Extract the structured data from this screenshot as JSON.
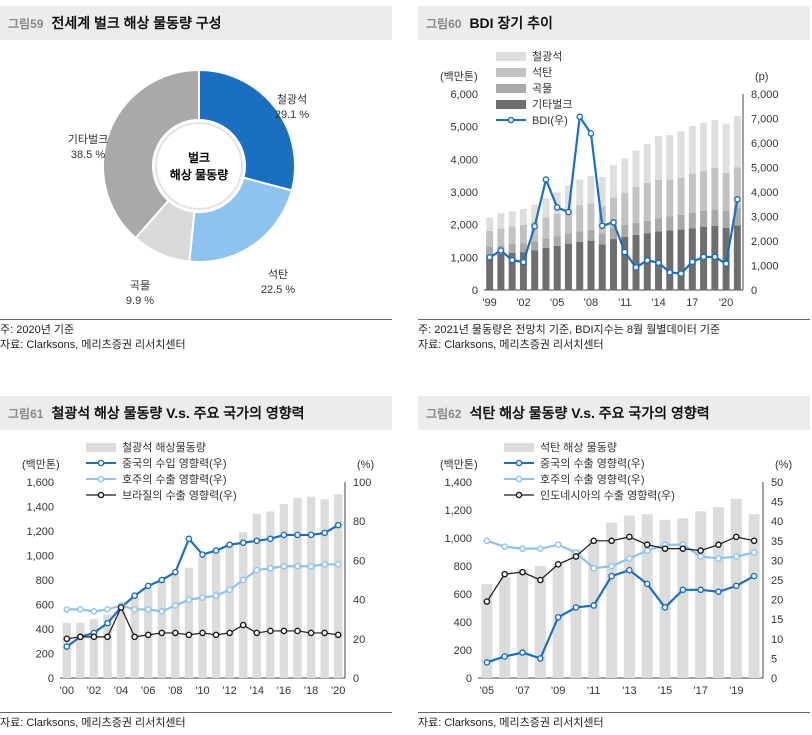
{
  "panels": {
    "p59": {
      "num": "그림59",
      "title": "전세계 벌크 해상 물동량 구성",
      "notes": [
        "주: 2020년 기준",
        "자료: Clarksons, 메리츠증권 리서치센터"
      ]
    },
    "p60": {
      "num": "그림60",
      "title": "BDI 장기 추이",
      "notes": [
        "주: 2021년 물동량은 전망치 기준, BDI지수는 8월 월별데이터 기준",
        "자료: Clarksons, 메리츠증권 리서치센터"
      ]
    },
    "p61": {
      "num": "그림61",
      "title": "철광석 해상 물동량 V.s. 주요 국가의 영향력",
      "notes": [
        "자료: Clarksons, 메리츠증권 리서치센터"
      ]
    },
    "p62": {
      "num": "그림62",
      "title": "석탄 해상 물동량 V.s. 주요 국가의 영향력",
      "notes": [
        "자료: Clarksons, 메리츠증권 리서치센터"
      ]
    }
  },
  "colors": {
    "blue": "#1a6fc1",
    "lightblue": "#8ec3ef",
    "darkgray": "#6e6e6e",
    "midgray": "#a9a9a9",
    "gray": "#d9d9d9",
    "barlight": "#e0e0e0"
  },
  "chart_data": [
    {
      "type": "pie",
      "center_label": [
        "벌크",
        "해상 물동량"
      ],
      "slices": [
        {
          "label": "철광석",
          "value": 29.1,
          "display": "29.1 %",
          "color": "#1a6fc1"
        },
        {
          "label": "석탄",
          "value": 22.5,
          "display": "22.5 %",
          "color": "#8ec3ef"
        },
        {
          "label": "곡물",
          "value": 9.9,
          "display": "9.9 %",
          "color": "#d9d9d9"
        },
        {
          "label": "기타벌크",
          "value": 38.5,
          "display": "38.5 %",
          "color": "#a9a9a9"
        }
      ]
    },
    {
      "type": "bar",
      "stacked": true,
      "y_unit_left": "(백만톤)",
      "y_unit_right": "(p)",
      "ylim_left": [
        0,
        6000
      ],
      "ylim_right": [
        0,
        8000
      ],
      "yticks_left": [
        "0",
        "1,000",
        "2,000",
        "3,000",
        "4,000",
        "5,000",
        "6,000"
      ],
      "yticks_right": [
        "0",
        "1,000",
        "2,000",
        "3,000",
        "4,000",
        "5,000",
        "6,000",
        "7,000",
        "8,000"
      ],
      "x": [
        1999,
        2000,
        2001,
        2002,
        2003,
        2004,
        2005,
        2006,
        2007,
        2008,
        2009,
        2010,
        2011,
        2012,
        2013,
        2014,
        2015,
        2016,
        2017,
        2018,
        2019,
        2020,
        2021
      ],
      "x_ticks": [
        "'99",
        "'02",
        "'05",
        "'08",
        "'11",
        "'14",
        "17",
        "'20"
      ],
      "series": [
        {
          "name": "기타벌크",
          "color": "#6e6e6e",
          "values": [
            1080,
            1110,
            1140,
            1160,
            1210,
            1290,
            1350,
            1420,
            1480,
            1510,
            1400,
            1560,
            1630,
            1690,
            1740,
            1790,
            1820,
            1850,
            1890,
            1940,
            1960,
            1900,
            1980
          ]
        },
        {
          "name": "곡물",
          "color": "#a9a9a9",
          "values": [
            250,
            260,
            270,
            270,
            280,
            290,
            300,
            310,
            320,
            330,
            340,
            350,
            360,
            360,
            380,
            410,
            430,
            450,
            470,
            480,
            500,
            520,
            530
          ]
        },
        {
          "name": "석탄",
          "color": "#c2c2c2",
          "values": [
            480,
            520,
            540,
            560,
            600,
            640,
            680,
            730,
            790,
            810,
            820,
            920,
            990,
            1110,
            1160,
            1170,
            1130,
            1140,
            1190,
            1220,
            1280,
            1170,
            1250
          ]
        },
        {
          "name": "철광석",
          "color": "#dedede",
          "values": [
            410,
            460,
            460,
            490,
            520,
            590,
            660,
            730,
            790,
            840,
            900,
            990,
            1050,
            1110,
            1190,
            1340,
            1360,
            1420,
            1470,
            1480,
            1460,
            1500,
            1570
          ]
        }
      ],
      "line": {
        "name": "BDI(우)",
        "color": "#1a6fc1",
        "values": [
          1330,
          1610,
          1220,
          1140,
          2600,
          4510,
          3370,
          3180,
          7070,
          6390,
          2620,
          2760,
          1550,
          920,
          1210,
          1110,
          720,
          670,
          1150,
          1350,
          1350,
          1070,
          3700
        ]
      },
      "legend": [
        "철광석",
        "석탄",
        "곡물",
        "기타벌크",
        "BDI(우)"
      ]
    },
    {
      "type": "bar",
      "y_unit_left": "(백만톤)",
      "y_unit_right": "(%)",
      "ylim_left": [
        0,
        1600
      ],
      "ylim_right": [
        0,
        100
      ],
      "yticks_left": [
        "0",
        "200",
        "400",
        "600",
        "800",
        "1,000",
        "1,200",
        "1,400",
        "1,600"
      ],
      "yticks_right": [
        "0",
        "20",
        "40",
        "60",
        "80",
        "100"
      ],
      "x": [
        2000,
        2001,
        2002,
        2003,
        2004,
        2005,
        2006,
        2007,
        2008,
        2009,
        2010,
        2011,
        2012,
        2013,
        2014,
        2015,
        2016,
        2017,
        2018,
        2019,
        2020
      ],
      "x_ticks": [
        "'00",
        "'02",
        "'04",
        "'06",
        "'08",
        "'10",
        "'12",
        "'14",
        "'16",
        "'18",
        "'20"
      ],
      "bars": {
        "name": "철광석 해상물동량",
        "color": "#dcdcdc",
        "values": [
          450,
          450,
          480,
          520,
          590,
          660,
          730,
          790,
          840,
          900,
          990,
          1050,
          1100,
          1190,
          1340,
          1360,
          1420,
          1470,
          1480,
          1460,
          1500
        ]
      },
      "series": [
        {
          "name": "중국의 수입 영향력(우)",
          "color": "#1a6fc1",
          "values": [
            16,
            21,
            23,
            28,
            36,
            42,
            47,
            50,
            54,
            71,
            63,
            65,
            68,
            69,
            70,
            71,
            73,
            73,
            73,
            74,
            78
          ]
        },
        {
          "name": "호주의 수출 영향력(우)",
          "color": "#8ec3ef",
          "values": [
            35,
            35,
            34,
            35,
            37,
            35,
            35,
            34,
            37,
            40,
            41,
            42,
            45,
            50,
            55,
            56,
            57,
            57,
            57,
            58,
            58
          ]
        },
        {
          "name": "브라질의 수출 영향력(우)",
          "color": "#1a1a1a",
          "values": [
            20,
            21,
            21,
            21,
            36,
            21,
            22,
            23,
            23,
            22,
            23,
            22,
            23,
            27,
            23,
            24,
            24,
            24,
            23,
            23,
            22
          ]
        }
      ]
    },
    {
      "type": "bar",
      "y_unit_left": "(백만톤)",
      "y_unit_right": "(%)",
      "ylim_left": [
        0,
        1400
      ],
      "ylim_right": [
        0,
        50
      ],
      "yticks_left": [
        "0",
        "200",
        "400",
        "600",
        "800",
        "1,000",
        "1,200",
        "1,400"
      ],
      "yticks_right": [
        "0",
        "5",
        "10",
        "15",
        "20",
        "25",
        "30",
        "35",
        "40",
        "45",
        "50"
      ],
      "x": [
        2005,
        2006,
        2007,
        2008,
        2009,
        2010,
        2011,
        2012,
        2013,
        2014,
        2015,
        2016,
        2017,
        2018,
        2019,
        2020
      ],
      "x_ticks": [
        "'05",
        "'07",
        "'09",
        "'11",
        "'13",
        "'15",
        "'17",
        "'19"
      ],
      "bars": {
        "name": "석탄 해상 물동량",
        "color": "#dcdcdc",
        "values": [
          670,
          720,
          780,
          800,
          820,
          920,
          990,
          1110,
          1160,
          1170,
          1130,
          1140,
          1190,
          1220,
          1280,
          1170
        ]
      },
      "series": [
        {
          "name": "중국의 수출 영향력(우)",
          "color": "#1a6fc1",
          "values": [
            4,
            5.5,
            6.5,
            5,
            15.5,
            18,
            18.5,
            26,
            27.5,
            24,
            18,
            22.5,
            22.5,
            22,
            23.5,
            26
          ]
        },
        {
          "name": "호주의 수출 영향력(우)",
          "color": "#8ec3ef",
          "values": [
            35,
            33.5,
            33,
            33,
            34,
            32,
            28,
            28.5,
            30.5,
            32.5,
            34,
            34,
            31,
            30.5,
            31,
            32
          ]
        },
        {
          "name": "인도네시아의 수출 영향력(우)",
          "color": "#1a1a1a",
          "values": [
            19.5,
            26.5,
            27,
            25,
            29,
            31,
            35,
            35,
            36,
            34,
            33,
            33,
            32.5,
            34,
            36,
            35
          ]
        }
      ]
    }
  ]
}
